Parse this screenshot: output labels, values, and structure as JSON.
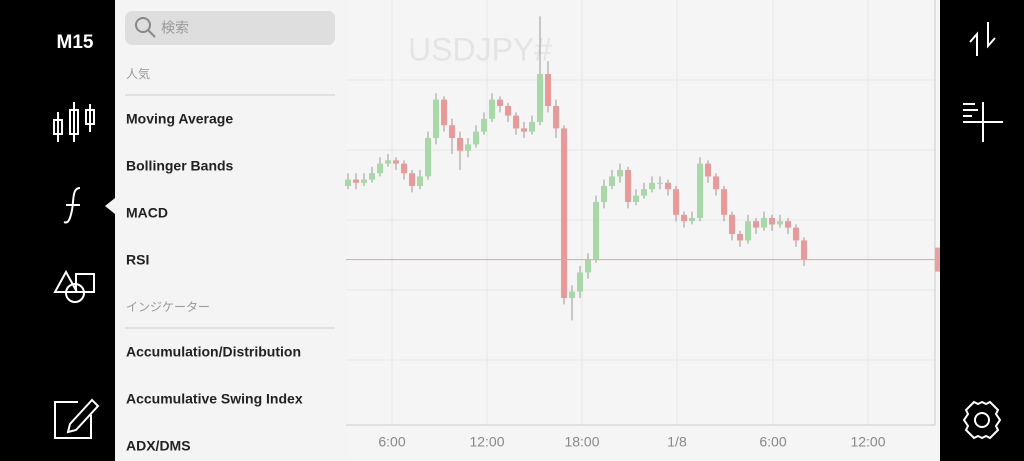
{
  "left_rail": {
    "timeframe": "M15"
  },
  "menu": {
    "search_placeholder": "検索",
    "sections": [
      {
        "header": "人気",
        "items": [
          "Moving Average",
          "Bollinger Bands",
          "MACD",
          "RSI"
        ]
      },
      {
        "header": "インジケーター",
        "items": [
          "Accumulation/Distribution",
          "Accumulative Swing Index",
          "ADX/DMS"
        ]
      }
    ]
  },
  "chart_data": {
    "type": "candlestick",
    "watermark": "USDJPY#",
    "x_labels": [
      "6:00",
      "12:00",
      "18:00",
      "1/8",
      "6:00",
      "12:00"
    ],
    "ylim": [
      0,
      100
    ],
    "current_price": 22,
    "colors": {
      "up": "#a6d9a6",
      "down": "#e89a9a",
      "price_line": "#e8a0a0"
    },
    "candles": [
      [
        45,
        49,
        44,
        47
      ],
      [
        47,
        49,
        44,
        46
      ],
      [
        46,
        49,
        45,
        47
      ],
      [
        47,
        51,
        46,
        49
      ],
      [
        49,
        54,
        48,
        52
      ],
      [
        52,
        55,
        51,
        53
      ],
      [
        53,
        54,
        50,
        52
      ],
      [
        52,
        53,
        47,
        49
      ],
      [
        49,
        50,
        43,
        45
      ],
      [
        45,
        50,
        44,
        48
      ],
      [
        48,
        62,
        47,
        60
      ],
      [
        60,
        74,
        58,
        72
      ],
      [
        72,
        73,
        62,
        64
      ],
      [
        64,
        66,
        55,
        60
      ],
      [
        60,
        62,
        50,
        56
      ],
      [
        56,
        60,
        54,
        58
      ],
      [
        58,
        64,
        57,
        62
      ],
      [
        62,
        68,
        61,
        66
      ],
      [
        66,
        74,
        65,
        72
      ],
      [
        72,
        73,
        68,
        70
      ],
      [
        70,
        71,
        65,
        67
      ],
      [
        67,
        68,
        61,
        63
      ],
      [
        63,
        65,
        60,
        62
      ],
      [
        62,
        67,
        61,
        65
      ],
      [
        65,
        98,
        64,
        80
      ],
      [
        80,
        84,
        68,
        70
      ],
      [
        70,
        72,
        60,
        63
      ],
      [
        63,
        64,
        8,
        10
      ],
      [
        10,
        14,
        3,
        12
      ],
      [
        12,
        20,
        10,
        18
      ],
      [
        18,
        24,
        16,
        22
      ],
      [
        22,
        42,
        21,
        40
      ],
      [
        40,
        47,
        38,
        45
      ],
      [
        45,
        50,
        44,
        48
      ],
      [
        48,
        52,
        46,
        50
      ],
      [
        50,
        51,
        38,
        40
      ],
      [
        40,
        44,
        39,
        42
      ],
      [
        42,
        46,
        41,
        44
      ],
      [
        44,
        48,
        43,
        46
      ],
      [
        46,
        48,
        44,
        46
      ],
      [
        46,
        47,
        42,
        44
      ],
      [
        44,
        45,
        34,
        36
      ],
      [
        36,
        37,
        32,
        34
      ],
      [
        34,
        37,
        33,
        35
      ],
      [
        35,
        54,
        34,
        52
      ],
      [
        52,
        53,
        46,
        48
      ],
      [
        48,
        49,
        42,
        44
      ],
      [
        44,
        45,
        34,
        36
      ],
      [
        36,
        37,
        28,
        30
      ],
      [
        30,
        31,
        26,
        28
      ],
      [
        28,
        36,
        27,
        34
      ],
      [
        34,
        35,
        30,
        32
      ],
      [
        32,
        37,
        31,
        35
      ],
      [
        35,
        36,
        31,
        33
      ],
      [
        33,
        36,
        32,
        34
      ],
      [
        34,
        35,
        30,
        32
      ],
      [
        32,
        33,
        26,
        28
      ],
      [
        28,
        29,
        20,
        22
      ]
    ]
  }
}
